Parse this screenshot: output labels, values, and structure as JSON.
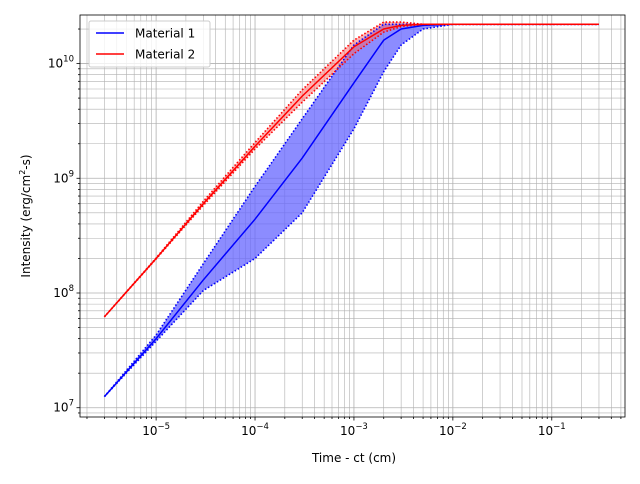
{
  "chart_data": {
    "type": "line",
    "title": "",
    "xlabel": "Time - ct (cm)",
    "ylabel_parts": [
      "Intensity (erg/cm",
      "2",
      "-s)"
    ],
    "x_scale": "log",
    "y_scale": "log",
    "xlim": [
      1.7e-06,
      0.55
    ],
    "ylim": [
      8300000.0,
      26500000000.0
    ],
    "grid": "major and minor",
    "legend_position": "top-left",
    "x_major_ticks": [
      {
        "value": 1e-05,
        "base": "10",
        "exp": "−5"
      },
      {
        "value": 0.0001,
        "base": "10",
        "exp": "−4"
      },
      {
        "value": 0.001,
        "base": "10",
        "exp": "−3"
      },
      {
        "value": 0.01,
        "base": "10",
        "exp": "−2"
      },
      {
        "value": 0.1,
        "base": "10",
        "exp": "−1"
      }
    ],
    "y_major_ticks": [
      {
        "value": 10000000.0,
        "base": "10",
        "exp": "7"
      },
      {
        "value": 100000000.0,
        "base": "10",
        "exp": "8"
      },
      {
        "value": 1000000000.0,
        "base": "10",
        "exp": "9"
      },
      {
        "value": 10000000000.0,
        "base": "10",
        "exp": "10"
      }
    ],
    "series": [
      {
        "name": "Material 1",
        "color": "#0000ff",
        "band_color": "#6666ff",
        "x": [
          3e-06,
          1e-05,
          3e-05,
          0.0001,
          0.0003,
          0.001,
          0.002,
          0.003,
          0.005,
          0.01,
          0.03,
          0.1,
          0.3
        ],
        "y": [
          12500000.0,
          40000000.0,
          130000000.0,
          440000000.0,
          1500000000.0,
          6800000000.0,
          16000000000.0,
          20000000000.0,
          21500000000.0,
          22000000000.0,
          22000000000.0,
          22000000000.0,
          22000000000.0
        ],
        "lower": [
          12500000.0,
          38000000.0,
          105000000.0,
          200000000.0,
          500000000.0,
          2700000000.0,
          8500000000.0,
          14500000000.0,
          20000000000.0,
          22000000000.0,
          22000000000.0,
          22000000000.0,
          22000000000.0
        ],
        "upper": [
          12500000.0,
          43000000.0,
          180000000.0,
          850000000.0,
          3300000000.0,
          14500000000.0,
          22000000000.0,
          22000000000.0,
          22000000000.0,
          22000000000.0,
          22000000000.0,
          22000000000.0,
          22000000000.0
        ]
      },
      {
        "name": "Material 2",
        "color": "#ff0000",
        "band_color": "#ff6666",
        "x": [
          3e-06,
          1e-05,
          3e-05,
          0.0001,
          0.0003,
          0.001,
          0.002,
          0.003,
          0.005,
          0.01,
          0.03,
          0.1,
          0.3
        ],
        "y": [
          62000000.0,
          200000000.0,
          600000000.0,
          1900000000.0,
          5200000000.0,
          14000000000.0,
          20000000000.0,
          21500000000.0,
          22000000000.0,
          22000000000.0,
          22000000000.0,
          22000000000.0,
          22000000000.0
        ],
        "lower": [
          62000000.0,
          198000000.0,
          580000000.0,
          1800000000.0,
          4600000000.0,
          12200000000.0,
          18800000000.0,
          21000000000.0,
          22000000000.0,
          22000000000.0,
          22000000000.0,
          22000000000.0,
          22000000000.0
        ],
        "upper": [
          62000000.0,
          202000000.0,
          630000000.0,
          2050000000.0,
          5900000000.0,
          16000000000.0,
          23000000000.0,
          23000000000.0,
          22000000000.0,
          22000000000.0,
          22000000000.0,
          22000000000.0,
          22000000000.0
        ]
      }
    ]
  }
}
